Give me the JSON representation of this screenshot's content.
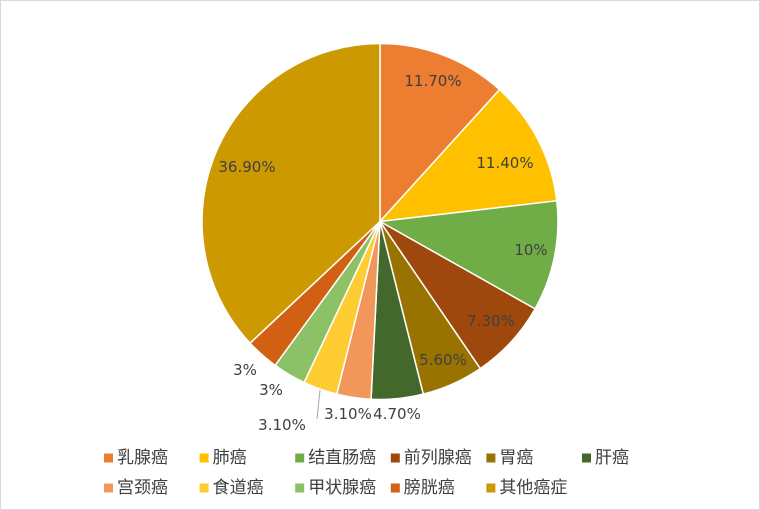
{
  "chart_data": {
    "type": "pie",
    "categories": [
      "乳腺癌",
      "肺癌",
      "结直肠癌",
      "前列腺癌",
      "胃癌",
      "肝癌",
      "宫颈癌",
      "食道癌",
      "甲状腺癌",
      "膀胱癌",
      "其他癌症"
    ],
    "values": [
      11.7,
      11.4,
      10,
      7.3,
      5.6,
      4.7,
      3.1,
      3.1,
      3,
      3,
      36.9
    ],
    "data_labels": [
      "11.70%",
      "11.40%",
      "10%",
      "7.30%",
      "5.60%",
      "4.70%",
      "3.10%",
      "3.10%",
      "3%",
      "3%",
      "36.90%"
    ],
    "colors": [
      "#ED7D31",
      "#FFC000",
      "#70AD47",
      "#9E480E",
      "#997300",
      "#43682B",
      "#F1975A",
      "#FFCD33",
      "#8CC168",
      "#D26012",
      "#CC9A00"
    ],
    "direction": "clockwise",
    "legend": "bottom"
  }
}
